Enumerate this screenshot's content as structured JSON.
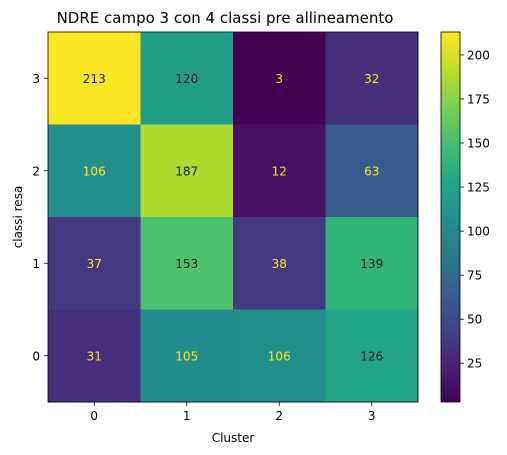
{
  "chart_data": {
    "type": "heatmap",
    "title": "NDRE campo 3 con 4 classi pre allineamento",
    "xlabel": "Cluster",
    "ylabel": "classi resa",
    "x_categories": [
      "0",
      "1",
      "2",
      "3"
    ],
    "y_categories": [
      "3",
      "2",
      "1",
      "0"
    ],
    "values": [
      [
        213,
        120,
        3,
        32
      ],
      [
        106,
        187,
        12,
        63
      ],
      [
        37,
        153,
        38,
        139
      ],
      [
        31,
        105,
        106,
        126
      ]
    ],
    "colorbar": {
      "colormap": "viridis",
      "range": [
        3,
        213
      ],
      "ticks": [
        25,
        50,
        75,
        100,
        125,
        150,
        175,
        200
      ]
    },
    "text_colors": {
      "light": "#fde725",
      "dark": "#1a1a1a"
    }
  }
}
